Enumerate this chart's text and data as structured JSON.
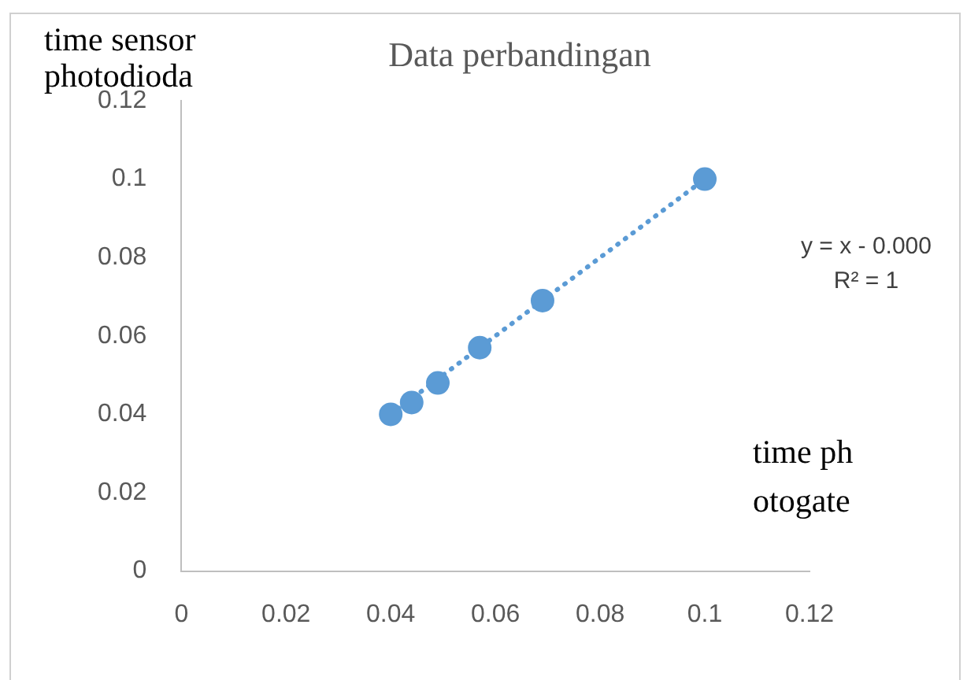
{
  "chart_data": {
    "type": "scatter",
    "title": "Data perbandingan",
    "xlabel": "time photogate",
    "ylabel": "time sensor photodioda",
    "x": [
      0.04,
      0.044,
      0.049,
      0.057,
      0.069,
      0.1
    ],
    "series": [
      {
        "type": "scatter",
        "color": "#5b9bd5",
        "values": [
          0.04,
          0.043,
          0.048,
          0.057,
          0.069,
          0.1
        ],
        "marker": "circle"
      },
      {
        "type": "line",
        "color": "#5b9bd5",
        "x": [
          0.04,
          0.1
        ],
        "values": [
          0.04,
          0.1
        ],
        "line_style": "dotted",
        "marker": "none"
      }
    ],
    "xlim": [
      0,
      0.12
    ],
    "xticks": [
      0,
      0.02,
      0.04,
      0.06,
      0.08,
      0.1,
      0.12
    ],
    "ylim": [
      0,
      0.12
    ],
    "yticks": [
      0,
      0.02,
      0.04,
      0.06,
      0.08,
      0.1,
      0.12
    ],
    "grid": false,
    "legend": false,
    "annotations": [
      "y = x - 0.000",
      "R² = 1"
    ]
  }
}
